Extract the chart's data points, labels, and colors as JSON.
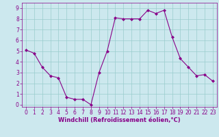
{
  "x": [
    0,
    1,
    2,
    3,
    4,
    5,
    6,
    7,
    8,
    9,
    10,
    11,
    12,
    13,
    14,
    15,
    16,
    17,
    18,
    19,
    20,
    21,
    22,
    23
  ],
  "y": [
    5.1,
    4.8,
    3.5,
    2.7,
    2.5,
    0.7,
    0.5,
    0.5,
    0.0,
    3.0,
    5.0,
    8.1,
    8.0,
    8.0,
    8.0,
    8.8,
    8.5,
    8.8,
    6.3,
    4.3,
    3.5,
    2.7,
    2.8,
    2.2
  ],
  "line_color": "#880088",
  "marker": "D",
  "marker_size": 2.0,
  "bg_color": "#cce8ee",
  "grid_color": "#99cccc",
  "xlabel": "Windchill (Refroidissement éolien,°C)",
  "xlabel_color": "#880088",
  "tick_color": "#880088",
  "ylim": [
    -0.2,
    9.5
  ],
  "xlim": [
    -0.5,
    23.5
  ],
  "yticks": [
    0,
    1,
    2,
    3,
    4,
    5,
    6,
    7,
    8,
    9
  ],
  "xticks": [
    0,
    1,
    2,
    3,
    4,
    5,
    6,
    7,
    8,
    9,
    10,
    11,
    12,
    13,
    14,
    15,
    16,
    17,
    18,
    19,
    20,
    21,
    22,
    23
  ],
  "tick_fontsize": 5.5,
  "xlabel_fontsize": 6.0
}
